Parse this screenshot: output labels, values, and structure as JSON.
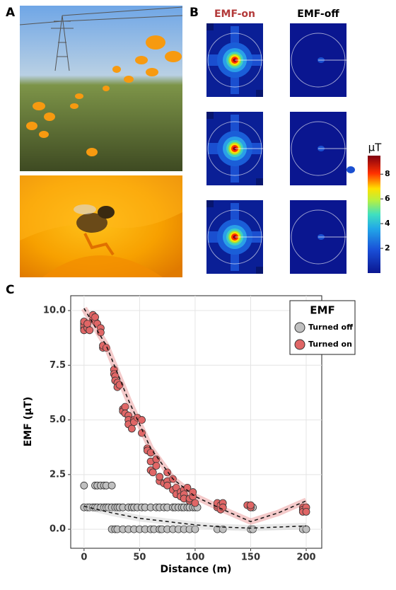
{
  "panels": {
    "a": "A",
    "b": "B",
    "c": "C"
  },
  "emf_maps": {
    "column_titles": [
      "EMF-on",
      "EMF-off"
    ],
    "colorbar": {
      "unit": "μT",
      "lim": [
        0,
        9.5
      ],
      "ticks": [
        2,
        4,
        6,
        8
      ]
    }
  },
  "chart_data": {
    "type": "scatter",
    "xlabel": "Distance (m)",
    "ylabel": "EMF (µT)",
    "xlim": [
      -12,
      214
    ],
    "ylim": [
      -0.87,
      10.68
    ],
    "xticks": [
      0,
      50,
      100,
      150,
      200
    ],
    "yticks": [
      {
        "value": 0,
        "label": "0.0"
      },
      {
        "value": 2.5,
        "label": "2.5"
      },
      {
        "value": 5,
        "label": "5.0"
      },
      {
        "value": 7.5,
        "label": "7.5"
      },
      {
        "value": 10,
        "label": "10.0"
      }
    ],
    "grid": true,
    "legend_title": "EMF",
    "legend_position": "top-right",
    "series": [
      {
        "name": "Turned off",
        "color": "#c0c0c0",
        "x": [
          0,
          10,
          12,
          15,
          18,
          20,
          25,
          0,
          3,
          5,
          8,
          10,
          12,
          15,
          18,
          20,
          22,
          25,
          28,
          30,
          32,
          35,
          40,
          43,
          45,
          48,
          52,
          55,
          60,
          65,
          68,
          72,
          75,
          80,
          82,
          85,
          88,
          90,
          93,
          95,
          98,
          100,
          102,
          120,
          125,
          150,
          152,
          25,
          28,
          30,
          35,
          40,
          45,
          50,
          55,
          60,
          63,
          68,
          70,
          75,
          80,
          85,
          90,
          95,
          100,
          120,
          125,
          150,
          152,
          197,
          200
        ],
        "values": [
          2,
          2,
          2,
          2,
          2,
          2,
          2,
          1,
          1,
          1,
          1,
          1,
          1,
          1,
          1,
          1,
          1,
          1,
          1,
          1,
          1,
          1,
          1,
          1,
          1,
          1,
          1,
          1,
          1,
          1,
          1,
          1,
          1,
          1,
          1,
          1,
          1,
          1,
          1,
          1,
          1,
          1,
          1,
          1,
          1,
          1,
          1,
          0,
          0,
          0,
          0,
          0,
          0,
          0,
          0,
          0,
          0,
          0,
          0,
          0,
          0,
          0,
          0,
          0,
          0,
          0,
          0,
          0,
          0,
          0,
          0
        ],
        "fit": {
          "x": [
            0,
            25,
            50,
            75,
            100,
            125,
            150,
            175,
            200
          ],
          "y": [
            1.05,
            0.75,
            0.5,
            0.35,
            0.2,
            0.1,
            0.05,
            0.1,
            0.15
          ]
        }
      },
      {
        "name": "Turned on",
        "color": "#e06666",
        "x": [
          0,
          0,
          0,
          0,
          0,
          3,
          3,
          5,
          8,
          8,
          10,
          10,
          12,
          15,
          15,
          17,
          17,
          20,
          27,
          27,
          28,
          28,
          30,
          30,
          32,
          35,
          35,
          37,
          37,
          40,
          40,
          40,
          43,
          45,
          45,
          48,
          52,
          52,
          57,
          57,
          60,
          60,
          60,
          62,
          65,
          65,
          68,
          68,
          72,
          75,
          75,
          75,
          80,
          80,
          83,
          83,
          87,
          87,
          90,
          90,
          90,
          93,
          95,
          95,
          98,
          98,
          100,
          120,
          120,
          120,
          123,
          123,
          125,
          125,
          147,
          150,
          150,
          197,
          197,
          197,
          200,
          200
        ],
        "values": [
          9.2,
          9.4,
          9.3,
          9.1,
          9.5,
          9.2,
          9.4,
          9.1,
          9.6,
          9.8,
          9.5,
          9.7,
          9.4,
          9.2,
          9.0,
          8.3,
          8.4,
          8.3,
          7.3,
          7.1,
          7.0,
          6.8,
          6.7,
          6.5,
          6.6,
          5.5,
          5.4,
          5.6,
          5.3,
          5.2,
          5.0,
          4.8,
          4.6,
          5.0,
          4.9,
          5.1,
          5.0,
          4.4,
          3.7,
          3.6,
          3.5,
          3.1,
          2.7,
          2.6,
          3.2,
          2.9,
          2.2,
          2.4,
          2.1,
          2.6,
          2.2,
          2.0,
          2.3,
          1.8,
          1.9,
          1.6,
          1.7,
          1.5,
          1.8,
          1.6,
          1.4,
          1.9,
          1.3,
          1.4,
          1.5,
          1.7,
          1.2,
          1.0,
          1.1,
          1.2,
          1.1,
          0.9,
          1.2,
          1.0,
          1.1,
          1.0,
          1.1,
          1.0,
          0.9,
          0.8,
          1.0,
          0.8
        ],
        "fit": {
          "x": [
            0,
            20,
            40,
            60,
            80,
            100,
            125,
            150,
            175,
            200
          ],
          "y": [
            10.1,
            8.4,
            5.9,
            3.7,
            2.3,
            1.5,
            0.9,
            0.35,
            0.75,
            1.3
          ]
        }
      }
    ]
  }
}
